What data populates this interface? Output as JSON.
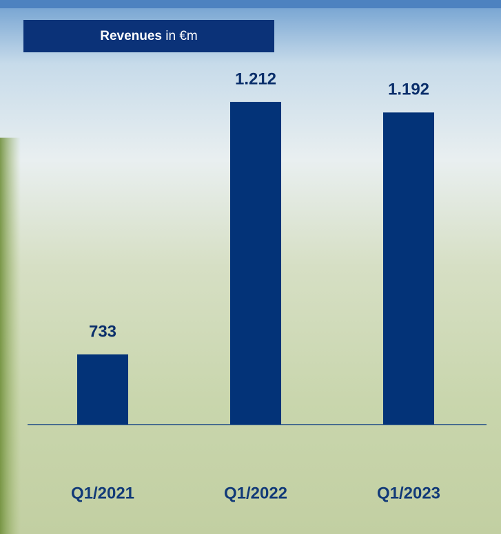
{
  "chart_data": {
    "type": "bar",
    "title_parts": [
      "Revenues",
      "in €m"
    ],
    "categories": [
      "Q1/2021",
      "Q1/2022",
      "Q1/2023"
    ],
    "values": [
      733,
      1212,
      1192
    ],
    "value_labels": [
      "733",
      "1.212",
      "1.192"
    ],
    "color": "#033378",
    "ylim": [
      600,
      1400
    ]
  }
}
